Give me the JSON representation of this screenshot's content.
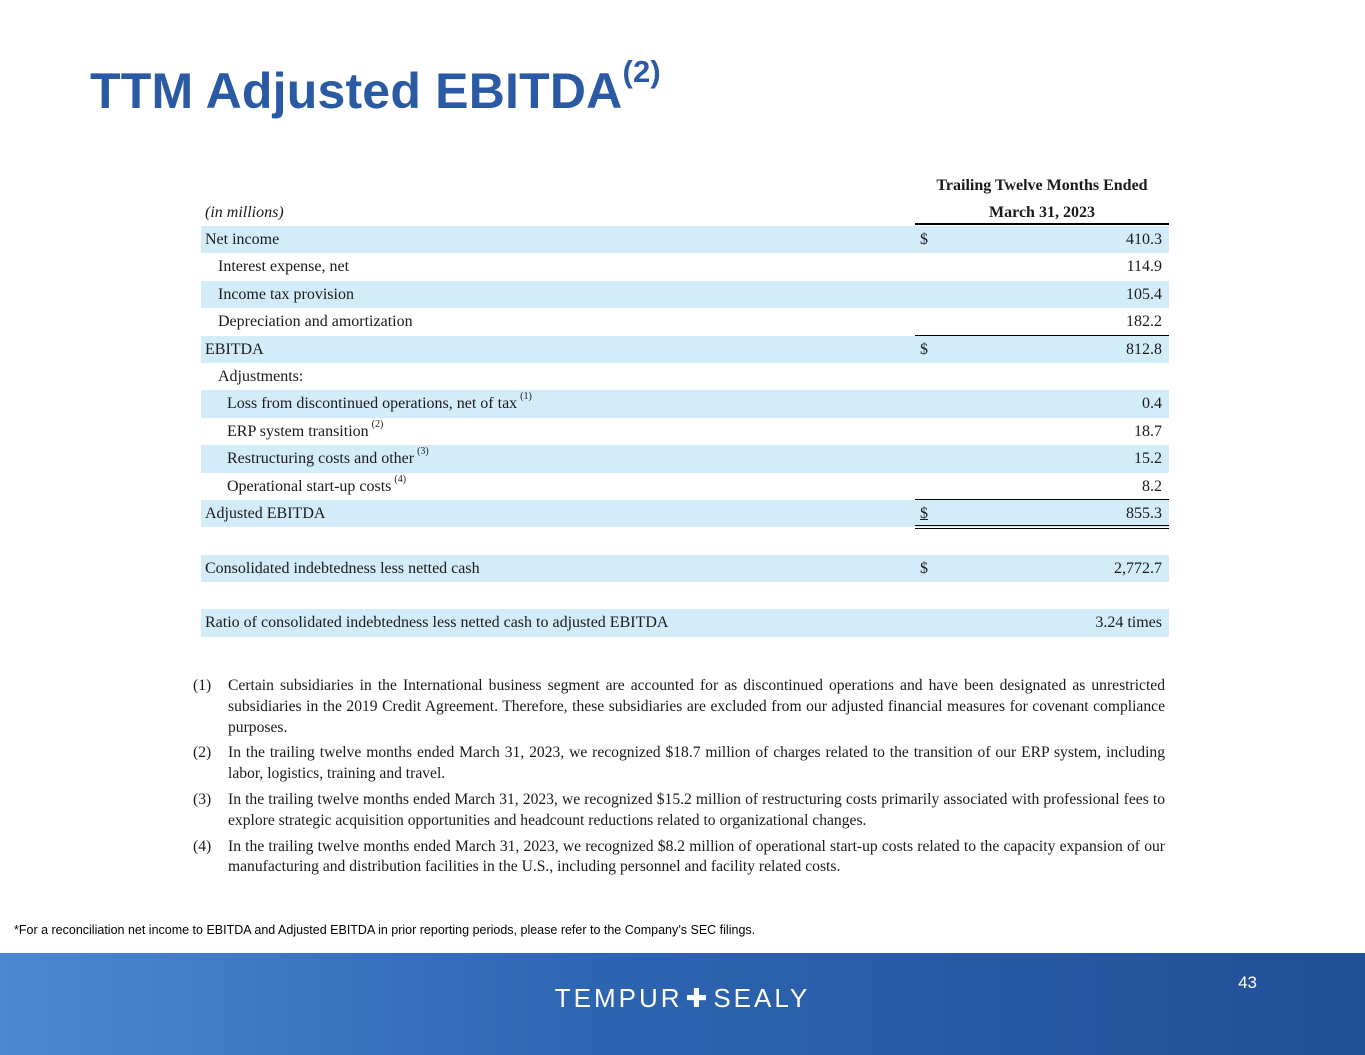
{
  "title": {
    "text": "TTM Adjusted EBITDA",
    "sup": "(2)"
  },
  "table": {
    "units_label": "(in millions)",
    "column_header_line1": "Trailing Twelve Months Ended",
    "column_header_line2": "March 31, 2023",
    "currency_symbol": "$",
    "rows": [
      {
        "label": "Net income",
        "value": "410.3"
      },
      {
        "label": "Interest expense, net",
        "value": "114.9"
      },
      {
        "label": "Income tax provision",
        "value": "105.4"
      },
      {
        "label": "Depreciation and amortization",
        "value": "182.2"
      },
      {
        "label": "EBITDA",
        "value": "812.8"
      },
      {
        "label": "Adjustments:"
      },
      {
        "label": "Loss from discontinued operations, net of tax",
        "note": "(1)",
        "value": "0.4"
      },
      {
        "label": "ERP system transition",
        "note": "(2)",
        "value": "18.7"
      },
      {
        "label": "Restructuring costs and other",
        "note": "(3)",
        "value": "15.2"
      },
      {
        "label": "Operational start-up costs",
        "note": "(4)",
        "value": "8.2"
      },
      {
        "label": "Adjusted EBITDA",
        "value": "855.3"
      },
      {
        "label": "Consolidated indebtedness less netted cash",
        "value": "2,772.7"
      },
      {
        "label": "Ratio of consolidated indebtedness less netted cash to adjusted EBITDA",
        "value": "3.24 times"
      }
    ]
  },
  "notes": [
    {
      "num": "(1)",
      "text": "Certain subsidiaries in the International business segment are accounted for as discontinued operations and have been designated as unrestricted subsidiaries in the 2019 Credit Agreement. Therefore, these subsidiaries are excluded from our adjusted financial measures for covenant compliance purposes."
    },
    {
      "num": "(2)",
      "text": "In the trailing twelve months ended March 31, 2023, we recognized $18.7 million of charges related to the transition of our ERP system, including labor, logistics, training and travel."
    },
    {
      "num": "(3)",
      "text": "In the trailing twelve months ended March 31, 2023, we recognized $15.2 million of restructuring costs primarily associated with professional fees to explore strategic acquisition opportunities and headcount reductions related to organizational changes."
    },
    {
      "num": "(4)",
      "text": "In the trailing twelve months ended March 31, 2023, we recognized $8.2 million of operational start-up costs related to the capacity expansion of our manufacturing and distribution facilities in the U.S., including personnel and facility related costs."
    }
  ],
  "footnote": "*For a reconciliation net income to EBITDA and Adjusted EBITDA in prior reporting periods, please refer to the Company’s SEC filings.",
  "footer": {
    "brand_left": "TEMPUR",
    "brand_plus": "✚",
    "brand_right": "SEALY",
    "page_number": "43"
  }
}
